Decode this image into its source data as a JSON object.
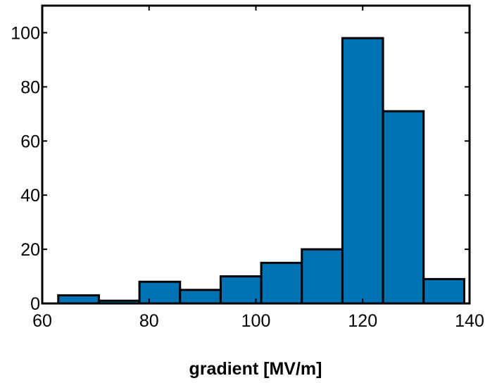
{
  "chart_data": {
    "type": "bar",
    "title": "",
    "xlabel": "gradient [MV/m]",
    "ylabel": "",
    "xlim": [
      60,
      140
    ],
    "ylim": [
      0,
      110
    ],
    "xticks": [
      60,
      80,
      100,
      120,
      140
    ],
    "yticks": [
      0,
      20,
      40,
      60,
      80,
      100
    ],
    "grid": false,
    "bins": [
      {
        "start": 63.0,
        "end": 70.6,
        "count": 3
      },
      {
        "start": 70.6,
        "end": 78.2,
        "count": 1
      },
      {
        "start": 78.2,
        "end": 85.8,
        "count": 8
      },
      {
        "start": 85.8,
        "end": 93.4,
        "count": 5
      },
      {
        "start": 93.4,
        "end": 101.0,
        "count": 10
      },
      {
        "start": 101.0,
        "end": 108.6,
        "count": 15
      },
      {
        "start": 108.6,
        "end": 116.2,
        "count": 20
      },
      {
        "start": 116.2,
        "end": 123.8,
        "count": 98
      },
      {
        "start": 123.8,
        "end": 131.4,
        "count": 71
      },
      {
        "start": 131.4,
        "end": 139.0,
        "count": 9
      }
    ],
    "colors": {
      "bar_fill": "#0072b2",
      "bar_edge": "#000000",
      "axes": "#000000"
    }
  }
}
